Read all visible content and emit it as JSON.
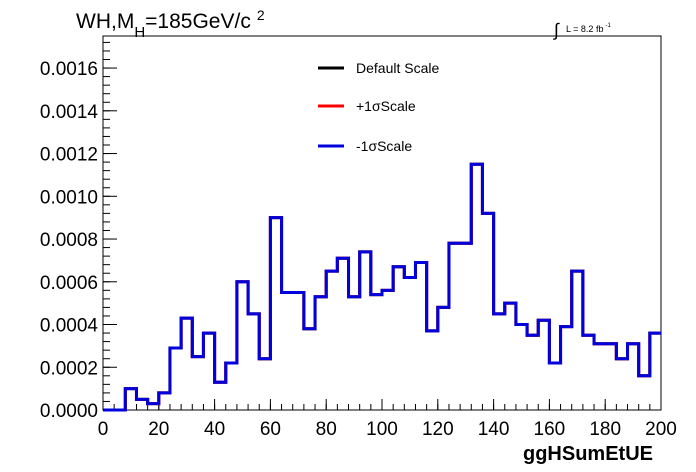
{
  "chart_data": {
    "type": "histogram",
    "title_main": "WH,M",
    "title_sub": "H",
    "title_rest": "=185GeV/c",
    "title_sup": "2",
    "lumi_label": "L = 8.2 fb",
    "lumi_sup": "-1",
    "lumi_integral": "∫",
    "xlabel": "ggHSumEtUE",
    "ylabel": "",
    "xlim": [
      0,
      200
    ],
    "ylim": [
      0,
      0.00175
    ],
    "x_ticks": [
      0,
      20,
      40,
      60,
      80,
      100,
      120,
      140,
      160,
      180,
      200
    ],
    "x_tick_labels": [
      "0",
      "20",
      "40",
      "60",
      "80",
      "100",
      "120",
      "140",
      "160",
      "180",
      "200"
    ],
    "y_ticks": [
      0,
      0.0002,
      0.0004,
      0.0006,
      0.0008,
      0.001,
      0.0012,
      0.0014,
      0.0016
    ],
    "y_tick_labels": [
      "0.0000",
      "0.0002",
      "0.0004",
      "0.0006",
      "0.0008",
      "0.0010",
      "0.0012",
      "0.0014",
      "0.0016"
    ],
    "bin_width": 4,
    "bin_start": 0,
    "series": [
      {
        "name": "Default Scale",
        "color": "#000000",
        "values": [
          0,
          0,
          0.0001,
          5e-05,
          3e-05,
          8e-05,
          0.00029,
          0.00043,
          0.00025,
          0.00036,
          0.00013,
          0.00022,
          0.0006,
          0.00045,
          0.00024,
          0.0009,
          0.00055,
          0.00055,
          0.00038,
          0.00053,
          0.00065,
          0.00071,
          0.00053,
          0.00074,
          0.00054,
          0.00056,
          0.00067,
          0.00062,
          0.00069,
          0.00037,
          0.00048,
          0.00078,
          0.00078,
          0.00115,
          0.00092,
          0.00045,
          0.0005,
          0.0004,
          0.00035,
          0.00042,
          0.00022,
          0.00039,
          0.00065,
          0.00035,
          0.00031,
          0.00031,
          0.00024,
          0.00031,
          0.00016,
          0.00036
        ]
      },
      {
        "name": "+1σScale",
        "color": "#ff0000",
        "values": [
          0,
          0,
          0.0001,
          5e-05,
          3e-05,
          8e-05,
          0.00029,
          0.00043,
          0.00025,
          0.00036,
          0.00013,
          0.00022,
          0.0006,
          0.00045,
          0.00024,
          0.0009,
          0.00055,
          0.00055,
          0.00038,
          0.00053,
          0.00065,
          0.00071,
          0.00053,
          0.00074,
          0.00054,
          0.00056,
          0.00067,
          0.00062,
          0.00069,
          0.00037,
          0.00048,
          0.00078,
          0.00078,
          0.00115,
          0.00092,
          0.00045,
          0.0005,
          0.0004,
          0.00035,
          0.00042,
          0.00022,
          0.00039,
          0.00065,
          0.00035,
          0.00031,
          0.00031,
          0.00024,
          0.00031,
          0.00016,
          0.00036
        ]
      },
      {
        "name": "-1σScale",
        "color": "#0000dd",
        "values": [
          0,
          0,
          0.0001,
          5e-05,
          3e-05,
          8e-05,
          0.00029,
          0.00043,
          0.00025,
          0.00036,
          0.00013,
          0.00022,
          0.0006,
          0.00045,
          0.00024,
          0.0009,
          0.00055,
          0.00055,
          0.00038,
          0.00053,
          0.00065,
          0.00071,
          0.00053,
          0.00074,
          0.00054,
          0.00056,
          0.00067,
          0.00062,
          0.00069,
          0.00037,
          0.00048,
          0.00078,
          0.00078,
          0.00115,
          0.00092,
          0.00045,
          0.0005,
          0.0004,
          0.00035,
          0.00042,
          0.00022,
          0.00039,
          0.00065,
          0.00035,
          0.00031,
          0.00031,
          0.00024,
          0.00031,
          0.00016,
          0.00036
        ]
      }
    ],
    "legend_position": "top-center",
    "grid": false
  }
}
